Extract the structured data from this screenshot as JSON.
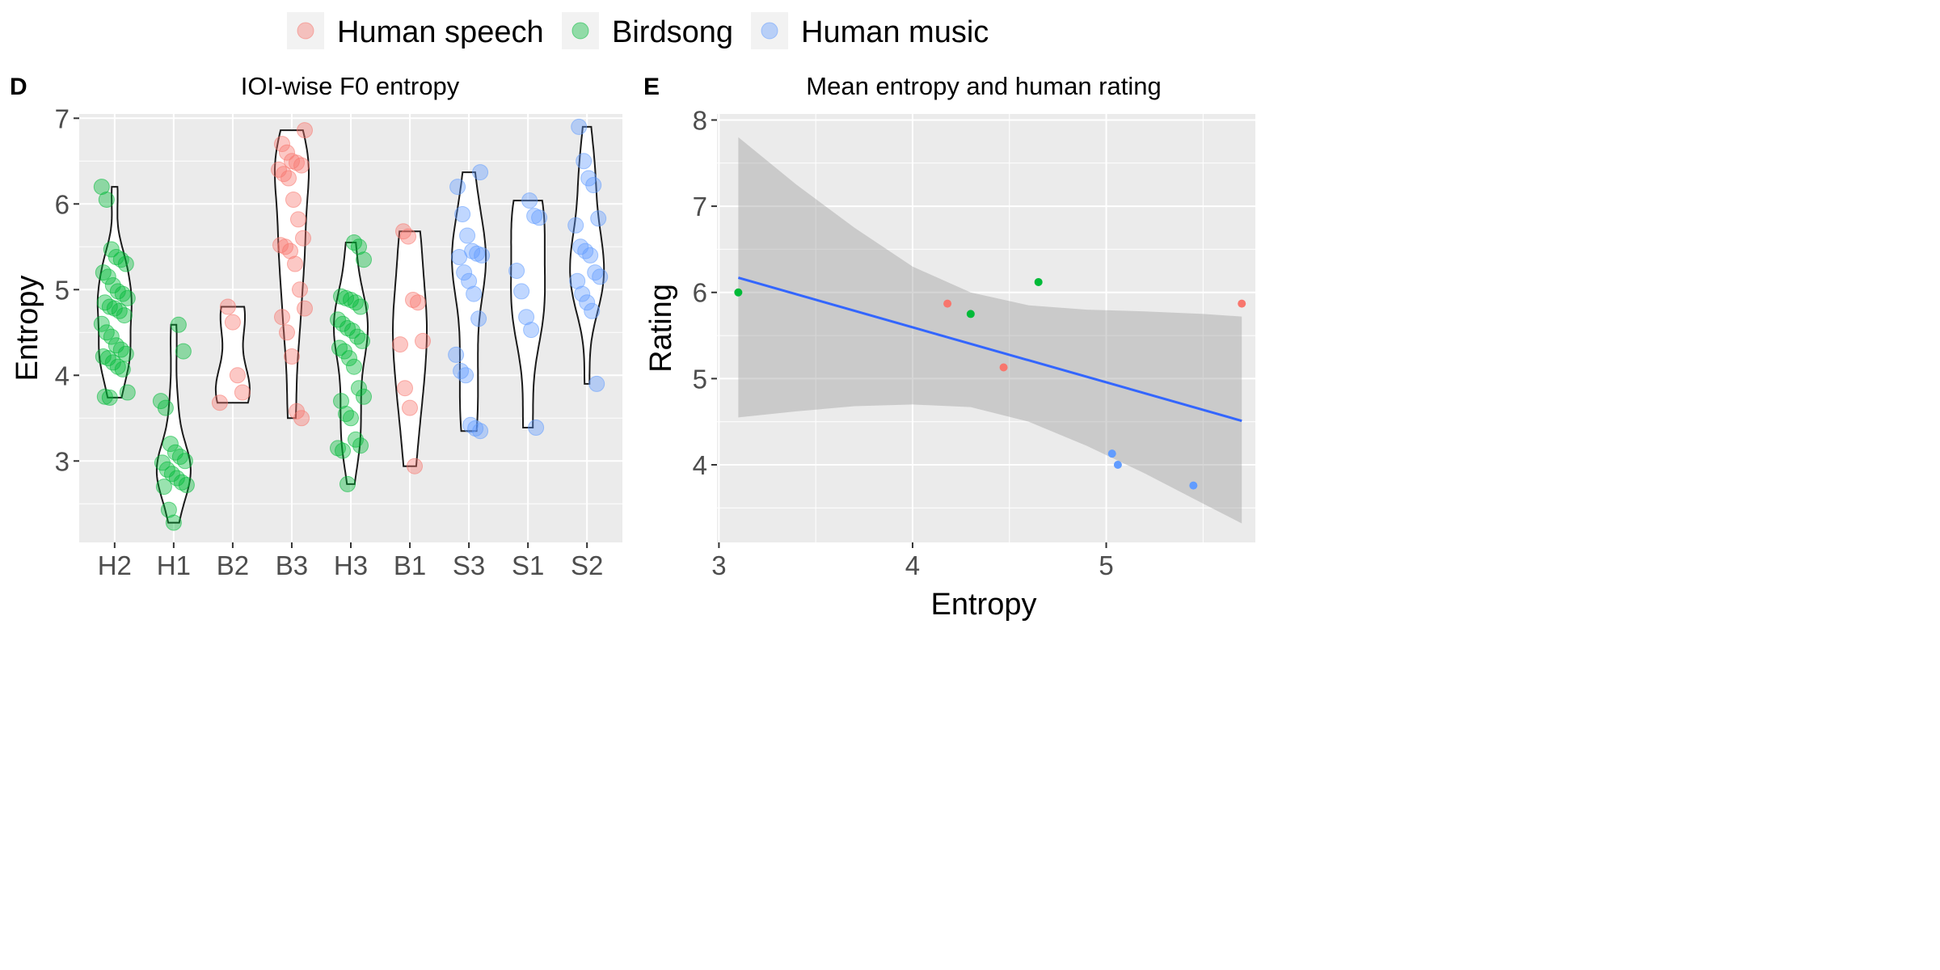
{
  "legend": {
    "position": "top",
    "entries": [
      {
        "label": "Human speech",
        "color": "#F8766D"
      },
      {
        "label": "Birdsong",
        "color": "#00BA38"
      },
      {
        "label": "Human music",
        "color": "#619CFF"
      }
    ]
  },
  "chart_data": [
    {
      "type": "violin",
      "panel_tag": "D",
      "title": "IOI-wise F0 entropy",
      "ylabel": "Entropy",
      "xlabel": "",
      "ylim": [
        2.05,
        7.05
      ],
      "yticks": [
        3,
        4,
        5,
        6,
        7
      ],
      "grid": true,
      "categories": [
        "H2",
        "H1",
        "B2",
        "B3",
        "H3",
        "B1",
        "S3",
        "S1",
        "S2"
      ],
      "groups": [
        {
          "category": "H2",
          "series": "Birdsong",
          "color": "#00BA38",
          "points": [
            6.2,
            6.05,
            5.47,
            5.38,
            5.35,
            5.3,
            5.2,
            5.15,
            5.05,
            4.98,
            4.95,
            4.9,
            4.85,
            4.8,
            4.78,
            4.75,
            4.7,
            4.6,
            4.5,
            4.45,
            4.35,
            4.3,
            4.25,
            4.22,
            4.2,
            4.15,
            4.1,
            4.07,
            3.8,
            3.75,
            3.74
          ]
        },
        {
          "category": "H1",
          "series": "Birdsong",
          "color": "#00BA38",
          "points": [
            4.59,
            4.28,
            3.7,
            3.62,
            3.2,
            3.1,
            3.05,
            3.0,
            2.98,
            2.9,
            2.85,
            2.8,
            2.75,
            2.72,
            2.7,
            2.43,
            2.28
          ]
        },
        {
          "category": "B2",
          "series": "Human speech",
          "color": "#F8766D",
          "points": [
            4.8,
            4.62,
            4.0,
            3.8,
            3.68
          ]
        },
        {
          "category": "B3",
          "series": "Human speech",
          "color": "#F8766D",
          "points": [
            6.86,
            6.7,
            6.6,
            6.5,
            6.48,
            6.45,
            6.4,
            6.35,
            6.3,
            6.05,
            5.82,
            5.6,
            5.52,
            5.5,
            5.45,
            5.3,
            5.0,
            4.78,
            4.68,
            4.5,
            4.22,
            3.58,
            3.5
          ]
        },
        {
          "category": "H3",
          "series": "Birdsong",
          "color": "#00BA38",
          "points": [
            5.55,
            5.5,
            5.35,
            4.92,
            4.9,
            4.88,
            4.85,
            4.8,
            4.65,
            4.6,
            4.55,
            4.52,
            4.45,
            4.4,
            4.32,
            4.28,
            4.2,
            4.1,
            3.85,
            3.75,
            3.7,
            3.55,
            3.5,
            3.25,
            3.18,
            3.15,
            3.12,
            2.73
          ]
        },
        {
          "category": "B1",
          "series": "Human speech",
          "color": "#F8766D",
          "points": [
            5.68,
            5.62,
            4.88,
            4.85,
            4.4,
            4.36,
            3.85,
            3.62,
            2.94
          ]
        },
        {
          "category": "S3",
          "series": "Human music",
          "color": "#619CFF",
          "points": [
            6.37,
            6.2,
            5.88,
            5.63,
            5.45,
            5.42,
            5.4,
            5.38,
            5.2,
            5.1,
            4.95,
            4.66,
            4.24,
            4.05,
            4.0,
            3.42,
            3.38,
            3.35
          ]
        },
        {
          "category": "S1",
          "series": "Human music",
          "color": "#619CFF",
          "points": [
            6.04,
            5.86,
            5.84,
            5.22,
            4.98,
            4.68,
            4.53,
            3.39
          ]
        },
        {
          "category": "S2",
          "series": "Human music",
          "color": "#619CFF",
          "points": [
            6.9,
            6.5,
            6.3,
            6.22,
            5.83,
            5.75,
            5.5,
            5.45,
            5.4,
            5.2,
            5.15,
            5.1,
            4.95,
            4.85,
            4.75,
            3.9
          ]
        }
      ]
    },
    {
      "type": "scatter",
      "panel_tag": "E",
      "title": "Mean entropy and human rating",
      "xlabel": "Entropy",
      "ylabel": "Rating",
      "xlim": [
        2.99,
        5.77
      ],
      "ylim": [
        3.1,
        8.07
      ],
      "xticks": [
        3,
        4,
        5
      ],
      "yticks": [
        4,
        5,
        6,
        7,
        8
      ],
      "grid": true,
      "points": [
        {
          "x": 3.1,
          "y": 6.0,
          "series": "Birdsong"
        },
        {
          "x": 4.3,
          "y": 5.75,
          "series": "Birdsong"
        },
        {
          "x": 4.65,
          "y": 6.12,
          "series": "Birdsong"
        },
        {
          "x": 4.18,
          "y": 5.87,
          "series": "Human speech"
        },
        {
          "x": 4.47,
          "y": 5.13,
          "series": "Human speech"
        },
        {
          "x": 5.7,
          "y": 5.87,
          "series": "Human speech"
        },
        {
          "x": 5.03,
          "y": 4.13,
          "series": "Human music"
        },
        {
          "x": 5.06,
          "y": 4.0,
          "series": "Human music"
        },
        {
          "x": 5.45,
          "y": 3.76,
          "series": "Human music"
        }
      ],
      "trend_line": {
        "color": "#3366FF",
        "start": {
          "x": 3.1,
          "y": 6.17
        },
        "end": {
          "x": 5.7,
          "y": 4.51
        }
      },
      "confidence_band": {
        "color": "#999999",
        "x": [
          3.1,
          3.4,
          3.7,
          4.0,
          4.3,
          4.6,
          4.9,
          5.2,
          5.5,
          5.7
        ],
        "upper": [
          7.8,
          7.25,
          6.75,
          6.3,
          6.0,
          5.85,
          5.8,
          5.78,
          5.75,
          5.72
        ],
        "lower": [
          4.55,
          4.62,
          4.68,
          4.7,
          4.67,
          4.5,
          4.22,
          3.9,
          3.55,
          3.32
        ]
      }
    }
  ]
}
